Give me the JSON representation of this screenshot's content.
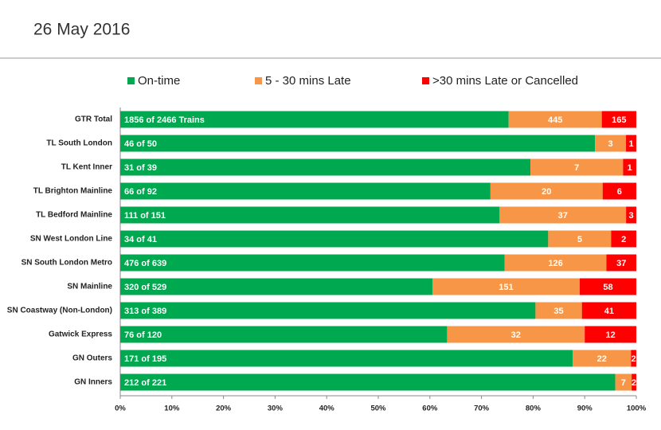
{
  "chart_data": {
    "type": "bar",
    "orientation": "horizontal",
    "stacked": "percent",
    "title": "26 May 2016",
    "categories": [
      "GTR Total",
      "TL South London",
      "TL Kent Inner",
      "TL Brighton Mainline",
      "TL Bedford Mainline",
      "SN West London Line",
      "SN South London Metro",
      "SN Mainline",
      "SN Coastway (Non-London)",
      "Gatwick Express",
      "GN Outers",
      "GN Inners"
    ],
    "series": [
      {
        "name": "On-time",
        "color": "#00a84f",
        "values": [
          1856,
          46,
          31,
          66,
          111,
          34,
          476,
          320,
          313,
          76,
          171,
          212
        ],
        "value_labels": [
          "1856 of 2466 Trains",
          "46 of 50",
          "31 of 39",
          "66 of 92",
          "111 of 151",
          "34 of 41",
          "476 of 639",
          "320 of 529",
          "313 of 389",
          "76 of 120",
          "171 of 195",
          "212 of 221"
        ]
      },
      {
        "name": "5 - 30 mins Late",
        "color": "#f79646",
        "values": [
          445,
          3,
          7,
          20,
          37,
          5,
          126,
          151,
          35,
          32,
          22,
          7
        ]
      },
      {
        "name": ">30 mins Late or Cancelled",
        "color": "#ff0000",
        "values": [
          165,
          1,
          1,
          6,
          3,
          2,
          37,
          58,
          41,
          12,
          2,
          2
        ]
      }
    ],
    "xlim": [
      0,
      100
    ],
    "xticks": [
      {
        "value": 0,
        "label": "0%"
      },
      {
        "value": 10,
        "label": "10%"
      },
      {
        "value": 20,
        "label": "20%"
      },
      {
        "value": 30,
        "label": "30%"
      },
      {
        "value": 40,
        "label": "40%"
      },
      {
        "value": 50,
        "label": "50%"
      },
      {
        "value": 60,
        "label": "60%"
      },
      {
        "value": 70,
        "label": "70%"
      },
      {
        "value": 80,
        "label": "80%"
      },
      {
        "value": 90,
        "label": "90%"
      },
      {
        "value": 100,
        "label": "100%"
      }
    ],
    "legend": "top"
  }
}
